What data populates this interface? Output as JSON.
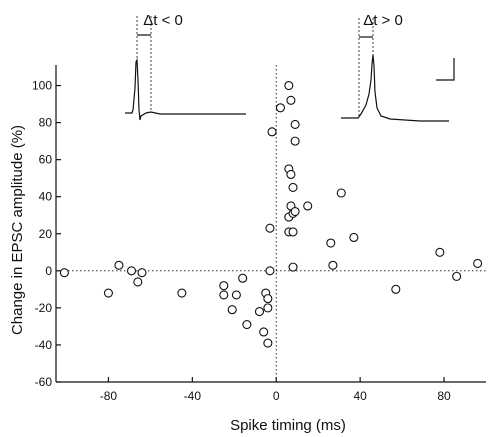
{
  "chart_data": {
    "type": "scatter",
    "xlabel": "Spike timing (ms)",
    "ylabel": "Change in EPSC amplitude (%)",
    "xlim": [
      -105,
      100
    ],
    "ylim": [
      -60,
      110
    ],
    "x_ticks": [
      -80,
      -40,
      0,
      40,
      80
    ],
    "y_ticks": [
      -60,
      -40,
      -20,
      0,
      20,
      40,
      60,
      80,
      100
    ],
    "grid": false,
    "reference_lines": {
      "x": 0,
      "y": 0,
      "style": "dotted"
    },
    "marker": "open-circle",
    "points": [
      [
        -101,
        -1
      ],
      [
        -80,
        -12
      ],
      [
        -75,
        3
      ],
      [
        -69,
        0
      ],
      [
        -66,
        -6
      ],
      [
        -64,
        -1
      ],
      [
        -45,
        -12
      ],
      [
        -25,
        -8
      ],
      [
        -25,
        -13
      ],
      [
        -21,
        -21
      ],
      [
        -19,
        -13
      ],
      [
        -16,
        -4
      ],
      [
        -14,
        -29
      ],
      [
        -8,
        -22
      ],
      [
        -6,
        -33
      ],
      [
        -5,
        -12
      ],
      [
        -4,
        -15
      ],
      [
        -4,
        -20
      ],
      [
        -4,
        -39
      ],
      [
        -3,
        0
      ],
      [
        -3,
        23
      ],
      [
        -2,
        75
      ],
      [
        2,
        88
      ],
      [
        6,
        29
      ],
      [
        6,
        100
      ],
      [
        6,
        21
      ],
      [
        6,
        55
      ],
      [
        7,
        52
      ],
      [
        7,
        35
      ],
      [
        7,
        92
      ],
      [
        8,
        21
      ],
      [
        8,
        45
      ],
      [
        8,
        31
      ],
      [
        8,
        2
      ],
      [
        9,
        79
      ],
      [
        9,
        70
      ],
      [
        9,
        32
      ],
      [
        15,
        35
      ],
      [
        26,
        15
      ],
      [
        27,
        3
      ],
      [
        31,
        42
      ],
      [
        37,
        18
      ],
      [
        57,
        -10
      ],
      [
        78,
        10
      ],
      [
        86,
        -3
      ],
      [
        96,
        4
      ]
    ],
    "insets": [
      {
        "label": "Δt < 0"
      },
      {
        "label": "Δt > 0"
      }
    ]
  }
}
